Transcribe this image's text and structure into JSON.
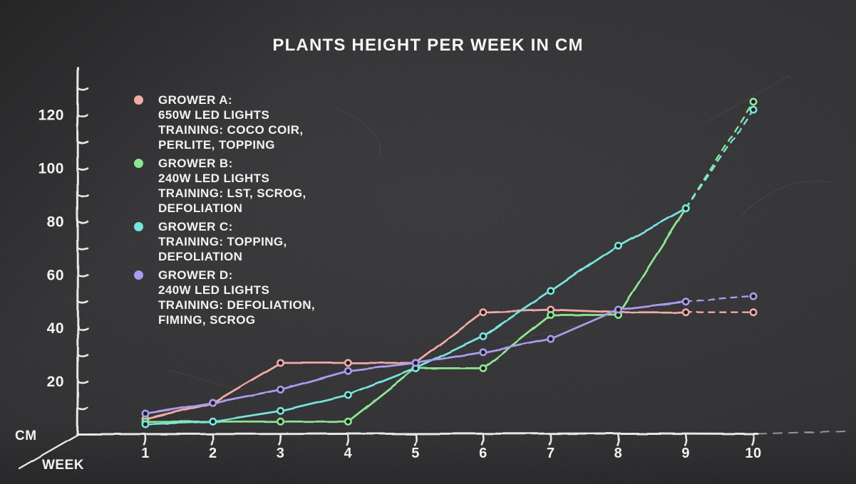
{
  "title": "PLANTS HEIGHT PER WEEK IN CM",
  "axes": {
    "y_unit": "CM",
    "x_unit": "WEEK",
    "y_tick_labels": [
      20,
      40,
      60,
      80,
      100,
      120
    ],
    "x_tick_labels": [
      1,
      2,
      3,
      4,
      5,
      6,
      7,
      8,
      9,
      10
    ]
  },
  "colors": {
    "background": "#201f22",
    "chalk": "#e9e7e3",
    "text": "#f4f3f0",
    "grower_a": "#f2aaa6",
    "grower_b": "#8ee690",
    "grower_c": "#79e4dd",
    "grower_d": "#aa9cec"
  },
  "legend": [
    {
      "id": "grower-a",
      "color": "#f2aaa6",
      "lines": [
        "GROWER A:",
        "650W LED LIGHTS",
        "TRAINING: COCO COIR,",
        "PERLITE, TOPPING"
      ]
    },
    {
      "id": "grower-b",
      "color": "#8ee690",
      "lines": [
        "GROWER B:",
        "240W LED LIGHTS",
        "TRAINING: LST, SCROG,",
        "DEFOLIATION"
      ]
    },
    {
      "id": "grower-c",
      "color": "#79e4dd",
      "lines": [
        "GROWER C:",
        "TRAINING: TOPPING,",
        "DEFOLIATION"
      ]
    },
    {
      "id": "grower-d",
      "color": "#aa9cec",
      "lines": [
        "GROWER D:",
        "240W LED LIGHTS",
        "TRAINING: DEFOLIATION,",
        "FIMING, SCROG"
      ]
    }
  ],
  "chart_data": {
    "type": "line",
    "title": "PLANTS HEIGHT PER WEEK IN CM",
    "xlabel": "WEEK",
    "ylabel": "CM",
    "x": [
      1,
      2,
      3,
      4,
      5,
      6,
      7,
      8,
      9,
      10
    ],
    "xlim": [
      0,
      11
    ],
    "ylim": [
      0,
      130
    ],
    "y_major_ticks": [
      20,
      40,
      60,
      80,
      100,
      120
    ],
    "y_minor_tick_step": 10,
    "grid": false,
    "legend_position": "upper-left",
    "style_notes": "white chalkboard axes, hollow circle markers, final segment week 9 to 10 drawn dashed",
    "series": [
      {
        "name": "Grower A",
        "color": "#f2aaa6",
        "values": [
          6,
          12,
          27,
          27,
          27,
          46,
          47,
          46,
          46,
          46
        ]
      },
      {
        "name": "Grower B",
        "color": "#8ee690",
        "values": [
          5,
          5,
          5,
          5,
          25,
          25,
          45,
          45,
          85,
          125
        ]
      },
      {
        "name": "Grower C",
        "color": "#79e4dd",
        "values": [
          4,
          5,
          9,
          15,
          25,
          37,
          54,
          71,
          85,
          122
        ]
      },
      {
        "name": "Grower D",
        "color": "#aa9cec",
        "values": [
          8,
          12,
          17,
          24,
          27,
          31,
          36,
          47,
          50,
          52
        ]
      }
    ]
  }
}
